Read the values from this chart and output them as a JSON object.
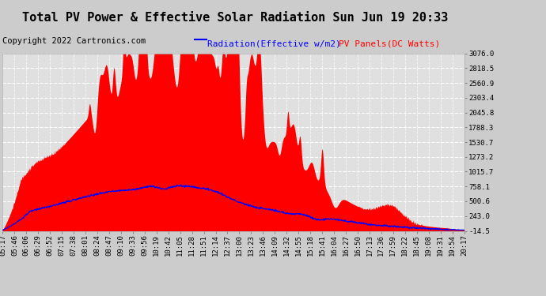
{
  "title": "Total PV Power & Effective Solar Radiation Sun Jun 19 20:33",
  "copyright": "Copyright 2022 Cartronics.com",
  "legend_radiation": "Radiation(Effective w/m2)",
  "legend_pv": "PV Panels(DC Watts)",
  "radiation_color": "blue",
  "pv_color": "red",
  "fig_bg_color": "#cccccc",
  "plot_bg_color": "#e0e0e0",
  "grid_color": "white",
  "ylim": [
    -14.5,
    3076.0
  ],
  "yticks": [
    -14.5,
    243.0,
    500.6,
    758.1,
    1015.7,
    1273.2,
    1530.7,
    1788.3,
    2045.8,
    2303.4,
    2560.9,
    2818.5,
    3076.0
  ],
  "xtick_labels": [
    "05:17",
    "05:46",
    "06:06",
    "06:29",
    "06:52",
    "07:15",
    "07:38",
    "08:01",
    "08:24",
    "08:47",
    "09:10",
    "09:33",
    "09:56",
    "10:19",
    "10:42",
    "11:05",
    "11:28",
    "11:51",
    "12:14",
    "12:37",
    "13:00",
    "13:23",
    "13:46",
    "14:09",
    "14:32",
    "14:55",
    "15:18",
    "15:41",
    "16:04",
    "16:27",
    "16:50",
    "17:13",
    "17:36",
    "17:59",
    "18:22",
    "18:45",
    "19:08",
    "19:31",
    "19:54",
    "20:17"
  ],
  "title_fontsize": 11,
  "tick_fontsize": 6.5,
  "copyright_fontsize": 7.5,
  "legend_fontsize": 8
}
